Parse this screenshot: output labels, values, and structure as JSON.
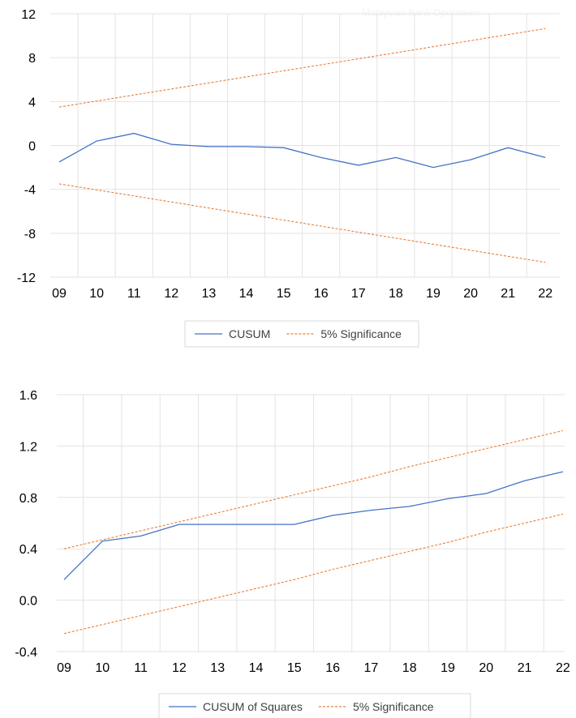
{
  "watermark": "Malaysian Bank Operations",
  "chart_data": [
    {
      "type": "line",
      "x": [
        "09",
        "10",
        "11",
        "12",
        "13",
        "14",
        "15",
        "16",
        "17",
        "18",
        "19",
        "20",
        "21",
        "22"
      ],
      "ylim": [
        -12,
        12
      ],
      "yticks": [
        "12",
        "8",
        "4",
        "0",
        "-4",
        "-8",
        "-12"
      ],
      "ytick_values": [
        12,
        8,
        4,
        0,
        -4,
        -8,
        -12
      ],
      "grid": true,
      "legend_position": "bottom",
      "series": [
        {
          "name": "CUSUM",
          "color": "#4472c4",
          "dashed": false,
          "values": [
            -1.5,
            0.4,
            1.1,
            0.1,
            -0.1,
            -0.1,
            -0.2,
            -1.1,
            -1.8,
            -1.1,
            -2.0,
            -1.3,
            -0.2,
            -1.1
          ]
        },
        {
          "name": "5% Significance",
          "color": "#ed7d31",
          "dashed": true,
          "values": [
            3.5,
            4.05,
            4.6,
            5.15,
            5.7,
            6.25,
            6.8,
            7.35,
            7.9,
            8.45,
            9.0,
            9.55,
            10.1,
            10.65
          ]
        },
        {
          "name": "5% Significance",
          "color": "#ed7d31",
          "dashed": true,
          "legend": false,
          "values": [
            -3.5,
            -4.05,
            -4.6,
            -5.15,
            -5.7,
            -6.25,
            -6.8,
            -7.35,
            -7.9,
            -8.45,
            -9.0,
            -9.55,
            -10.1,
            -10.65
          ]
        }
      ]
    },
    {
      "type": "line",
      "x": [
        "09",
        "10",
        "11",
        "12",
        "13",
        "14",
        "15",
        "16",
        "17",
        "18",
        "19",
        "20",
        "21",
        "22"
      ],
      "ylim": [
        -0.4,
        1.6
      ],
      "yticks": [
        "1.6",
        "1.2",
        "0.8",
        "0.4",
        "0.0",
        "-0.4"
      ],
      "ytick_values": [
        1.6,
        1.2,
        0.8,
        0.4,
        0.0,
        -0.4
      ],
      "grid": true,
      "legend_position": "bottom",
      "series": [
        {
          "name": "CUSUM of Squares",
          "color": "#4472c4",
          "dashed": false,
          "values": [
            0.16,
            0.46,
            0.5,
            0.59,
            0.59,
            0.59,
            0.59,
            0.66,
            0.7,
            0.73,
            0.79,
            0.83,
            0.93,
            1.0
          ]
        },
        {
          "name": "5% Significance",
          "color": "#ed7d31",
          "dashed": true,
          "values": [
            0.4,
            0.47,
            0.54,
            0.61,
            0.68,
            0.75,
            0.82,
            0.89,
            0.96,
            1.04,
            1.11,
            1.18,
            1.25,
            1.32
          ]
        },
        {
          "name": "5% Significance",
          "color": "#ed7d31",
          "dashed": true,
          "legend": false,
          "values": [
            -0.26,
            -0.19,
            -0.12,
            -0.05,
            0.02,
            0.09,
            0.16,
            0.24,
            0.31,
            0.38,
            0.45,
            0.53,
            0.6,
            0.67
          ]
        }
      ]
    }
  ]
}
